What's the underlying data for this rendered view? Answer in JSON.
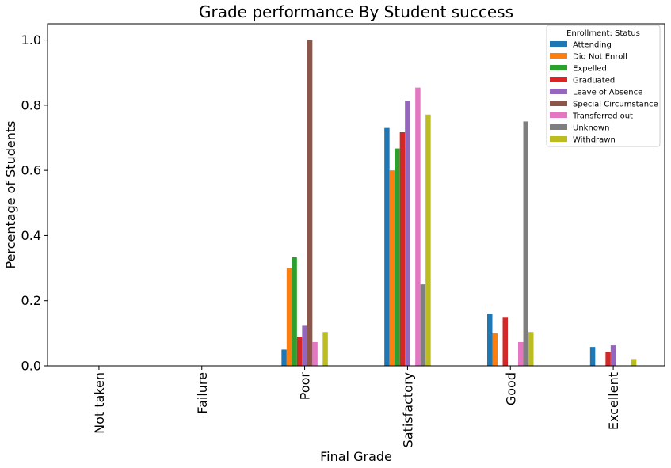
{
  "chart_data": {
    "type": "bar",
    "title": "Grade performance By Student success",
    "xlabel": "Final Grade",
    "ylabel": "Percentage of Students",
    "ylim": [
      0,
      1.05
    ],
    "yticks": [
      "0.0",
      "0.2",
      "0.4",
      "0.6",
      "0.8",
      "1.0"
    ],
    "grid": false,
    "legend_position": "top-right",
    "legend_title": "Enrollment: Status",
    "categories": [
      "Not taken",
      "Failure",
      "Poor",
      "Satisfactory",
      "Good",
      "Excellent"
    ],
    "series": [
      {
        "name": "Attending",
        "color": "#1f77b4",
        "values": [
          0,
          0,
          0.05,
          0.73,
          0.16,
          0.058
        ]
      },
      {
        "name": "Did Not Enroll",
        "color": "#ff7f0e",
        "values": [
          0,
          0,
          0.3,
          0.6,
          0.1,
          0
        ]
      },
      {
        "name": "Expelled",
        "color": "#2ca02c",
        "values": [
          0,
          0,
          0.333,
          0.667,
          0,
          0
        ]
      },
      {
        "name": "Graduated",
        "color": "#d62728",
        "values": [
          0,
          0,
          0.09,
          0.717,
          0.15,
          0.043
        ]
      },
      {
        "name": "Leave of Absence",
        "color": "#9467bd",
        "values": [
          0,
          0,
          0.123,
          0.813,
          0,
          0.063
        ]
      },
      {
        "name": "Special Circumstance",
        "color": "#8c564b",
        "values": [
          0,
          0,
          1.0,
          0,
          0,
          0
        ]
      },
      {
        "name": "Transferred out",
        "color": "#e377c2",
        "values": [
          0,
          0,
          0.073,
          0.854,
          0.073,
          0
        ]
      },
      {
        "name": "Unknown",
        "color": "#7f7f7f",
        "values": [
          0,
          0,
          0,
          0.25,
          0.75,
          0
        ]
      },
      {
        "name": "Withdrawn",
        "color": "#bcbd22",
        "values": [
          0,
          0,
          0.104,
          0.771,
          0.104,
          0.021
        ]
      }
    ]
  }
}
